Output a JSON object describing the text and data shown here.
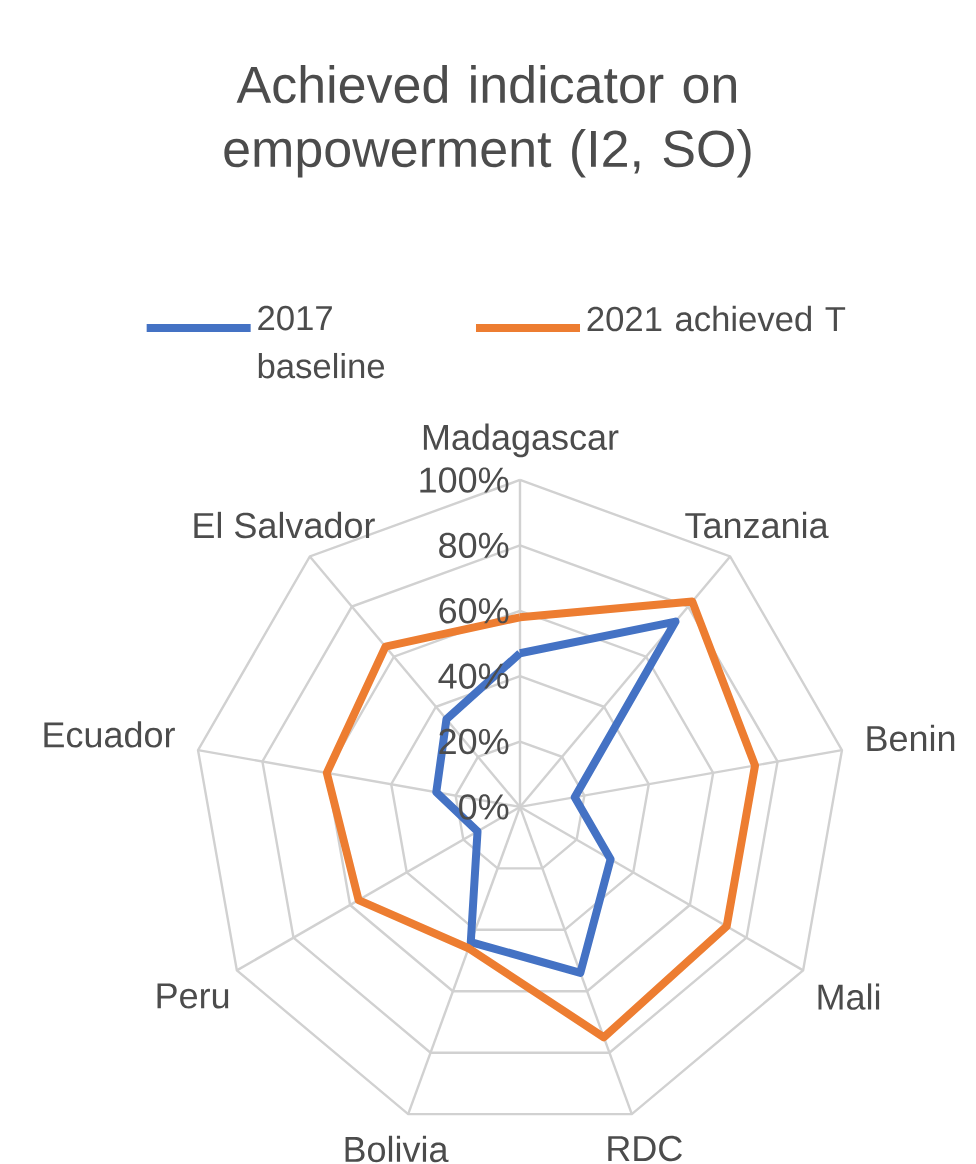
{
  "chart_data": {
    "type": "radar",
    "title": "Achieved indicator on empowerment (I2, SO)",
    "categories": [
      "Madagascar",
      "Tanzania",
      "Benin",
      "Mali",
      "RDC",
      "Bolivia",
      "Peru",
      "Ecuador",
      "El Salvador"
    ],
    "series": [
      {
        "name": "2017 baseline",
        "color": "#4472c4",
        "values": [
          47,
          74,
          17,
          32,
          54,
          44,
          15,
          26,
          35
        ]
      },
      {
        "name": "2021 achieved T",
        "color": "#ed7d31",
        "values": [
          58,
          82,
          73,
          73,
          75,
          46,
          57,
          60,
          64
        ]
      }
    ],
    "ylim": [
      0,
      100
    ],
    "yticks": [
      {
        "value": 0,
        "label": "0%"
      },
      {
        "value": 20,
        "label": "20%"
      },
      {
        "value": 40,
        "label": "40%"
      },
      {
        "value": 60,
        "label": "60%"
      },
      {
        "value": 80,
        "label": "80%"
      },
      {
        "value": 100,
        "label": "100%"
      }
    ],
    "grid": true,
    "legend": "top",
    "marker": "none"
  }
}
